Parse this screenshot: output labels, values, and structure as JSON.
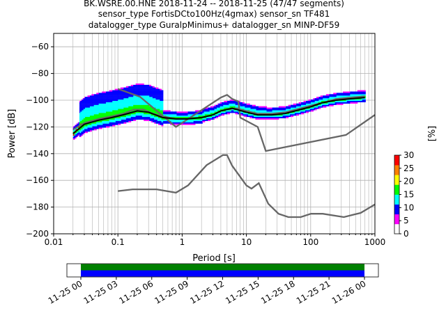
{
  "chart_data": {
    "type": "heatmap",
    "title_lines": [
      "BK.WSRE.00.HNE   2018-11-24 -- 2018-11-25  (47/47 segments)",
      "sensor_type FortisDCto100Hz(4gmax) sensor_sn TF481",
      "datalogger_type GuralpMinimus+ datalogger_sn MINP-DF59"
    ],
    "xlabel": "Period [s]",
    "ylabel": "Power [dB]",
    "xscale": "log",
    "xlim": [
      0.01,
      1000
    ],
    "ylim": [
      -200,
      -50
    ],
    "grid": true,
    "x_ticks": [
      {
        "value": 0.01,
        "label": "0.01"
      },
      {
        "value": 0.1,
        "label": "0.1"
      },
      {
        "value": 1,
        "label": "1"
      },
      {
        "value": 10,
        "label": "10"
      },
      {
        "value": 100,
        "label": "100"
      },
      {
        "value": 1000,
        "label": "1000"
      }
    ],
    "y_ticks": [
      {
        "value": -60,
        "label": "−60"
      },
      {
        "value": -80,
        "label": "−80"
      },
      {
        "value": -100,
        "label": "−100"
      },
      {
        "value": -120,
        "label": "−120"
      },
      {
        "value": -140,
        "label": "−140"
      },
      {
        "value": -160,
        "label": "−160"
      },
      {
        "value": -180,
        "label": "−180"
      },
      {
        "value": -200,
        "label": "−200"
      }
    ],
    "colorbar": {
      "label": "[%]",
      "range": [
        0,
        30
      ],
      "ticks": [
        "0",
        "5",
        "10",
        "15",
        "20",
        "25",
        "30"
      ],
      "colormap": [
        "#ffffff",
        "#ff00ff",
        "#0000ff",
        "#00ffff",
        "#00ff00",
        "#ffff00",
        "#ff8000",
        "#ff0000"
      ]
    },
    "noise_model_high": [
      [
        0.1,
        -91.5
      ],
      [
        0.22,
        -97.4
      ],
      [
        0.8,
        -120
      ],
      [
        4,
        -98
      ],
      [
        5,
        -96
      ],
      [
        6,
        -99
      ],
      [
        7.5,
        -101
      ],
      [
        8,
        -113
      ],
      [
        15,
        -120
      ],
      [
        20,
        -138
      ],
      [
        354.8,
        -126
      ],
      [
        1000,
        -111
      ]
    ],
    "noise_model_low": [
      [
        0.1,
        -168
      ],
      [
        0.17,
        -166.7
      ],
      [
        0.4,
        -166.7
      ],
      [
        0.8,
        -169.2
      ],
      [
        1.24,
        -163.7
      ],
      [
        2.4,
        -148.6
      ],
      [
        4.3,
        -141.1
      ],
      [
        5,
        -141.1
      ],
      [
        6,
        -149
      ],
      [
        10,
        -163.8
      ],
      [
        12,
        -166.2
      ],
      [
        15.6,
        -162.1
      ],
      [
        21.9,
        -177.5
      ],
      [
        31.6,
        -185
      ],
      [
        45,
        -187.5
      ],
      [
        70,
        -187.5
      ],
      [
        101,
        -185
      ],
      [
        154,
        -185
      ],
      [
        328,
        -187.5
      ],
      [
        600,
        -184.4
      ],
      [
        1000,
        -178
      ]
    ],
    "mean_curve": [
      [
        0.02,
        -122
      ],
      [
        0.03,
        -117
      ],
      [
        0.05,
        -114
      ],
      [
        0.08,
        -112
      ],
      [
        0.12,
        -110
      ],
      [
        0.18,
        -107
      ],
      [
        0.25,
        -107
      ],
      [
        0.35,
        -110
      ],
      [
        0.5,
        -112
      ],
      [
        0.8,
        -114
      ],
      [
        1.2,
        -114
      ],
      [
        2,
        -113
      ],
      [
        3,
        -111
      ],
      [
        4,
        -108
      ],
      [
        5,
        -107
      ],
      [
        7,
        -106
      ],
      [
        10,
        -108
      ],
      [
        15,
        -110
      ],
      [
        25,
        -110
      ],
      [
        40,
        -109
      ],
      [
        70,
        -106
      ],
      [
        100,
        -104
      ],
      [
        150,
        -102
      ],
      [
        250,
        -99
      ],
      [
        400,
        -98
      ],
      [
        700,
        -97
      ]
    ],
    "mode_curve": [
      [
        0.02,
        -125
      ],
      [
        0.03,
        -118
      ],
      [
        0.05,
        -115
      ],
      [
        0.08,
        -113
      ],
      [
        0.12,
        -111
      ],
      [
        0.2,
        -108
      ],
      [
        0.3,
        -109
      ],
      [
        0.5,
        -113
      ],
      [
        0.8,
        -114
      ],
      [
        1.2,
        -114
      ],
      [
        2,
        -113
      ],
      [
        3,
        -111
      ],
      [
        4,
        -108
      ],
      [
        6,
        -106
      ],
      [
        10,
        -109
      ],
      [
        15,
        -111
      ],
      [
        25,
        -111
      ],
      [
        40,
        -110
      ],
      [
        70,
        -107
      ],
      [
        100,
        -105
      ],
      [
        150,
        -102
      ],
      [
        250,
        -100
      ],
      [
        400,
        -99
      ],
      [
        700,
        -98
      ]
    ],
    "timeline": {
      "tick_labels": [
        "11-25 00",
        "11-25 03",
        "11-25 06",
        "11-25 09",
        "11-25 12",
        "11-25 15",
        "11-25 18",
        "11-25 21",
        "11-26 00"
      ],
      "green_band": "#008000",
      "blue_band": "#0000ff"
    }
  }
}
